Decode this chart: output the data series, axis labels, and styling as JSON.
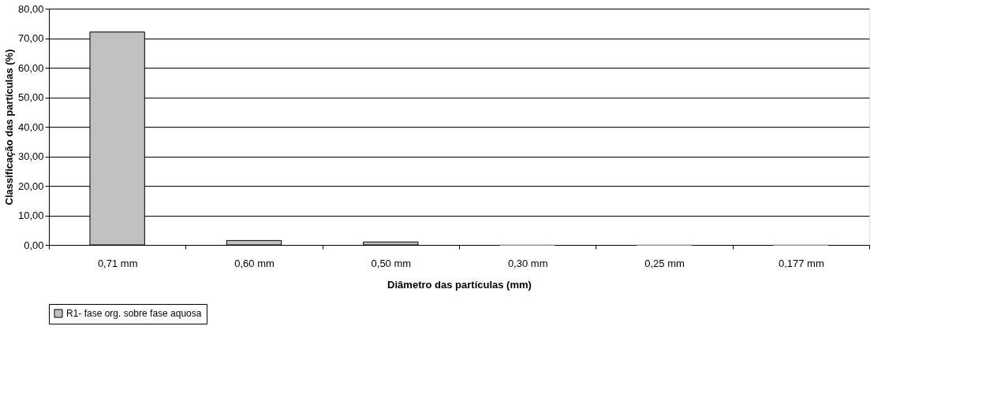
{
  "chart_data": {
    "type": "bar",
    "xlabel": "Diâmetro das partículas (mm)",
    "ylabel": "Classificação das partículas (%)",
    "categories": [
      "0,71 mm",
      "0,60 mm",
      "0,50 mm",
      "0,30 mm",
      "0,25 mm",
      "0,177 mm"
    ],
    "series": [
      {
        "name": "R1- fase org. sobre fase aquosa",
        "color": "#c0c0c0",
        "values": [
          72.1,
          1.5,
          1.0,
          0,
          0,
          0
        ]
      }
    ],
    "ylim": [
      0,
      80
    ],
    "yticks": [
      {
        "value": 0,
        "label": "0,00"
      },
      {
        "value": 10,
        "label": "10,00"
      },
      {
        "value": 20,
        "label": "20,00"
      },
      {
        "value": 30,
        "label": "30,00"
      },
      {
        "value": 40,
        "label": "40,00"
      },
      {
        "value": 50,
        "label": "50,00"
      },
      {
        "value": 60,
        "label": "60,00"
      },
      {
        "value": 70,
        "label": "70,00"
      },
      {
        "value": 80,
        "label": "80,00"
      }
    ],
    "grid": "y",
    "legend": "bottom"
  }
}
